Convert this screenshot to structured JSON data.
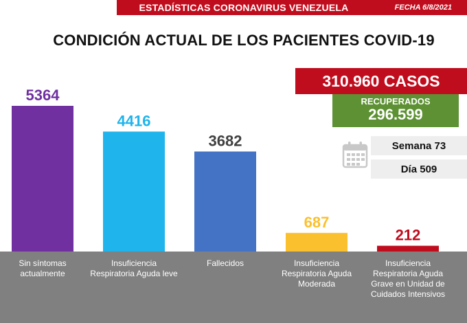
{
  "header": {
    "title": "ESTADÍSTICAS CORONAVIRUS VENEZUELA",
    "date": "FECHA 6/8/2021"
  },
  "main_title": "CONDICIÓN ACTUAL DE LOS PACIENTES COVID-19",
  "summary": {
    "cases": "310.960 CASOS",
    "recovered_label": "RECUPERADOS",
    "recovered_value": "296.599",
    "week": "Semana 73",
    "day": "Día 509"
  },
  "icons": {
    "calendar": "calendar-icon"
  },
  "chart_data": {
    "type": "bar",
    "categories": [
      [
        "Sin síntomas",
        "actualmente"
      ],
      [
        "Insuficiencia",
        "Respiratoria Aguda leve"
      ],
      [
        "Fallecidos"
      ],
      [
        "Insuficiencia",
        "Respiratoria Aguda",
        "Moderada"
      ],
      [
        "Insuficiencia",
        "Respiratoria Aguda",
        "Grave en Unidad de",
        "Cuidados Intensivos"
      ]
    ],
    "values": [
      5364,
      4416,
      3682,
      687,
      212
    ],
    "value_labels": [
      "5364",
      "4416",
      "3682",
      "687",
      "212"
    ],
    "colors": [
      "#7030a0",
      "#1fb4ec",
      "#4472c4",
      "#fbc02d",
      "#c00d1e"
    ],
    "value_label_colors": [
      "#7030a0",
      "#1fb4ec",
      "#404040",
      "#fbc02d",
      "#c00d1e"
    ],
    "ylim": [
      0,
      5364
    ],
    "xlabel": "",
    "ylabel": "",
    "grid": false,
    "legend": "none",
    "category_band_color": "#808080"
  }
}
